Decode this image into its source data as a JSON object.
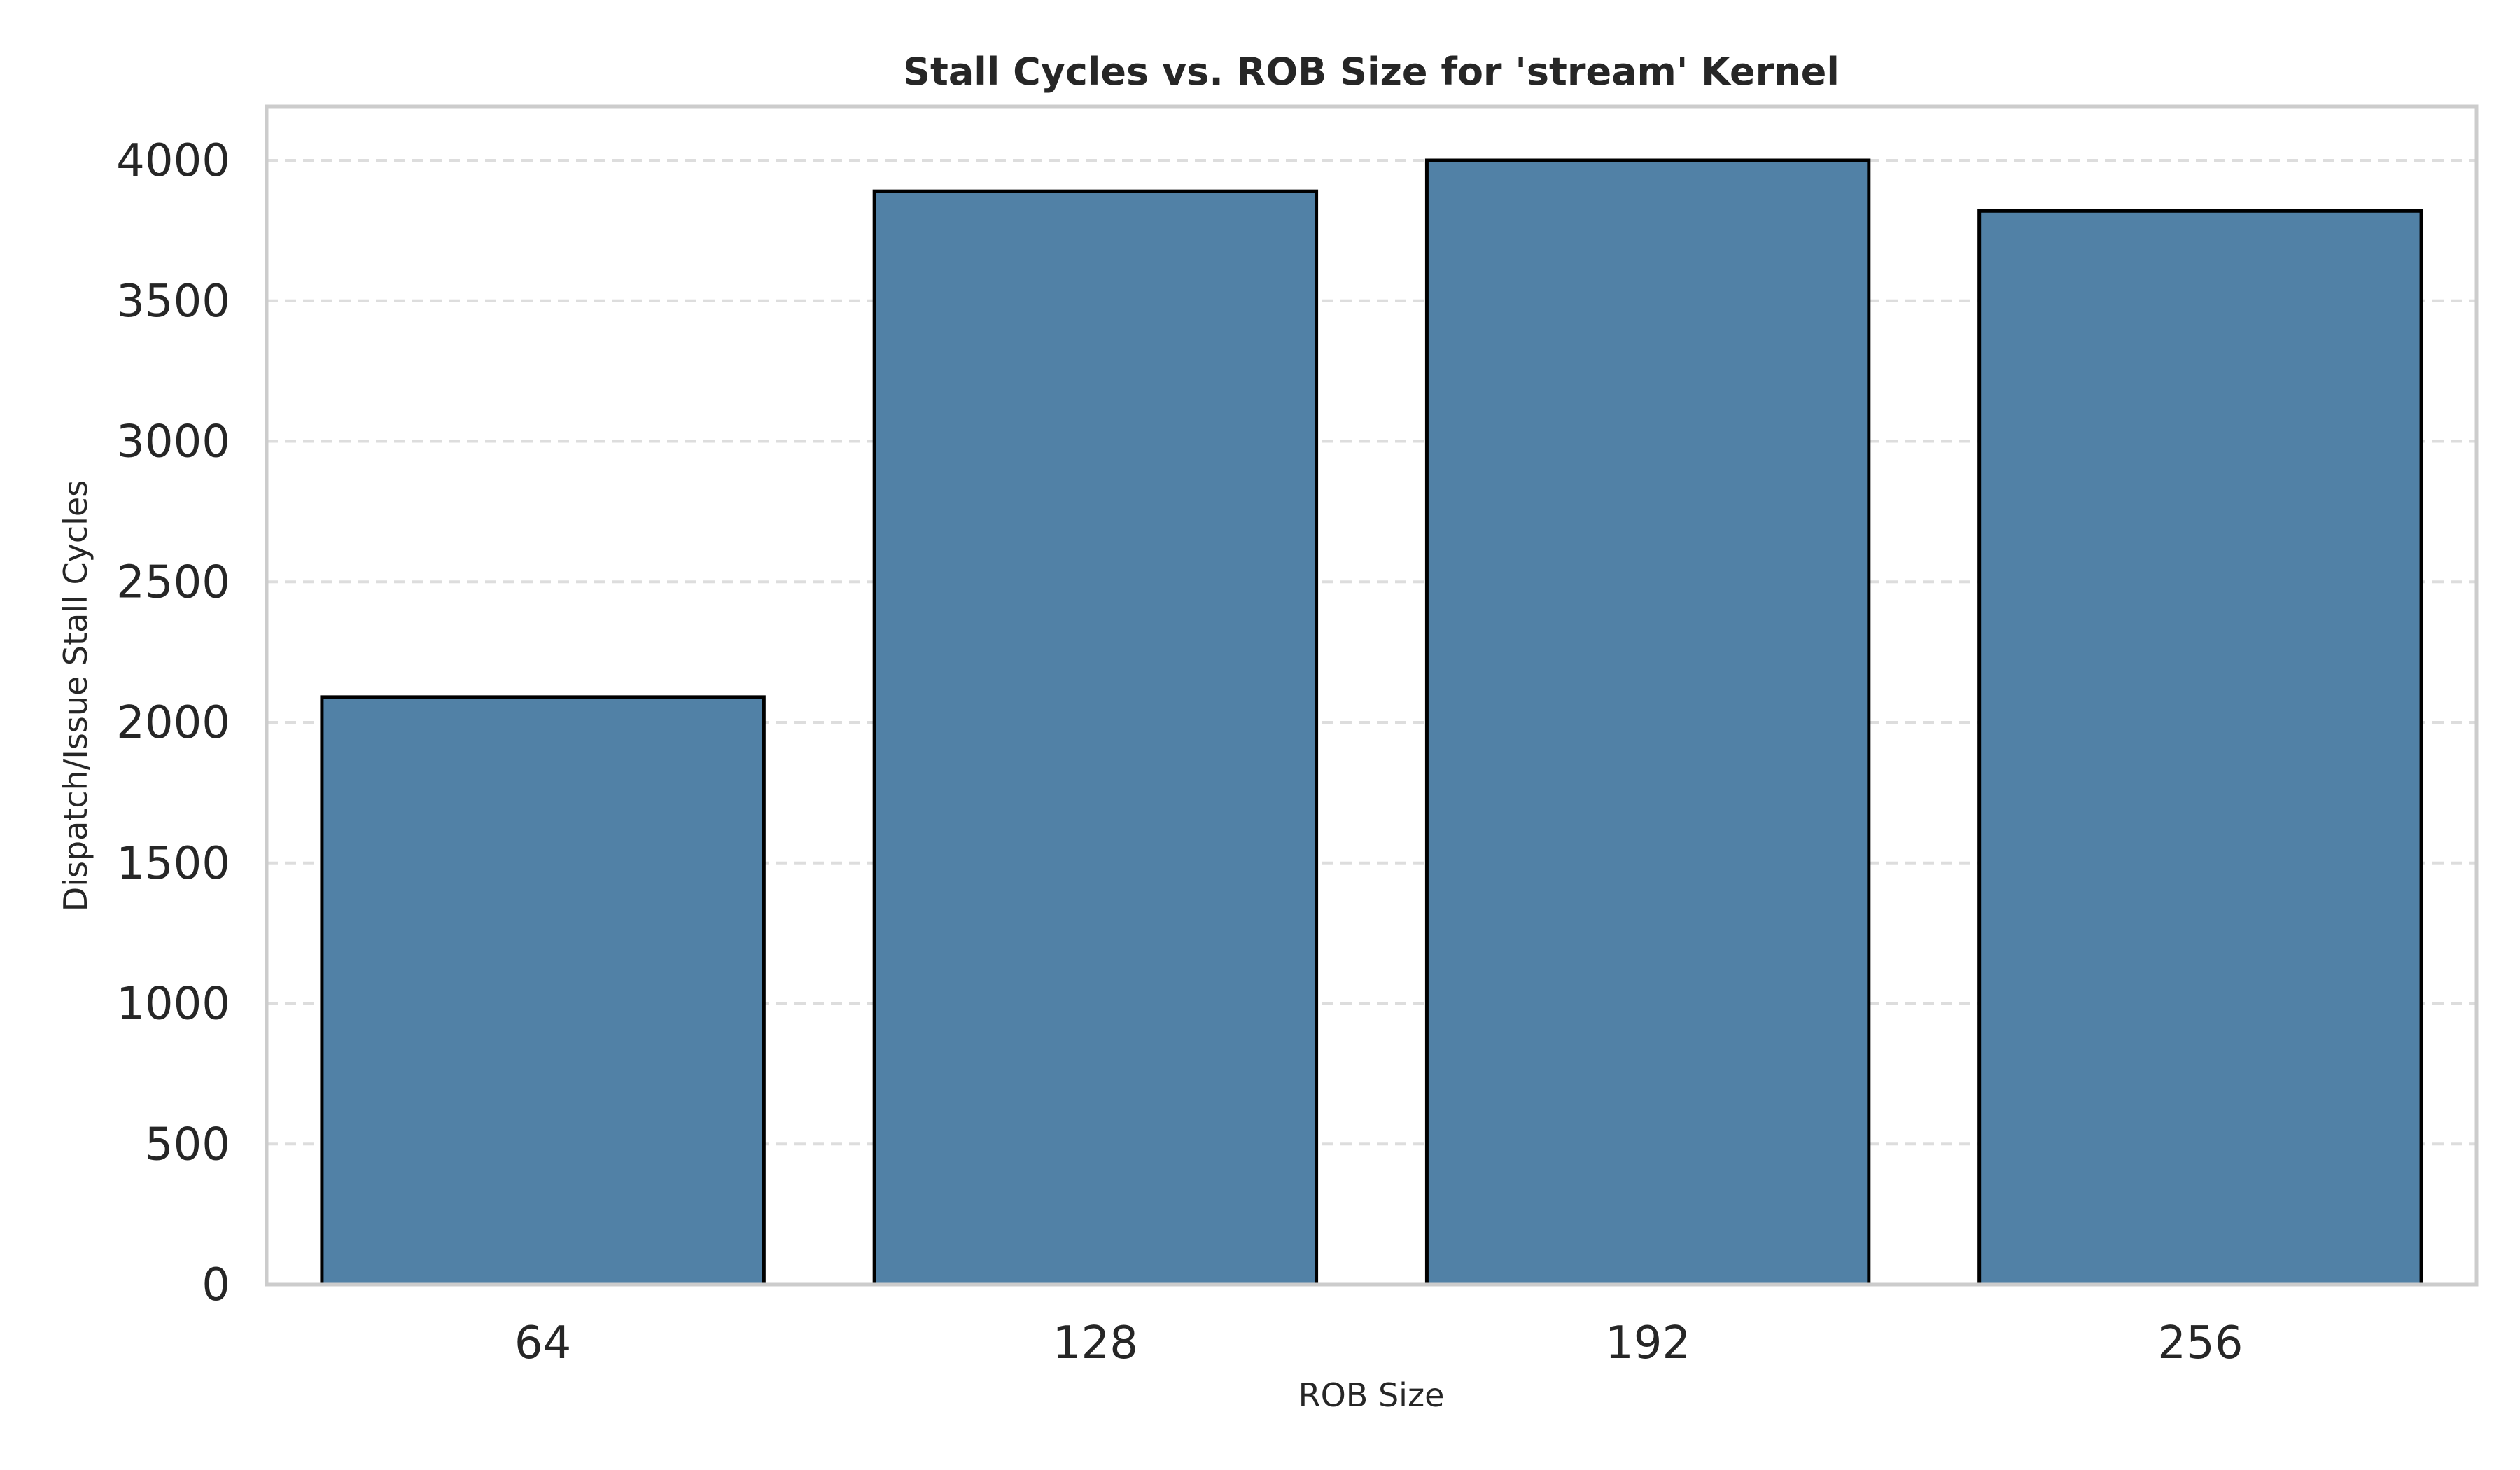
{
  "chart_data": {
    "type": "bar",
    "title": "Stall Cycles vs. ROB Size for 'stream' Kernel",
    "xlabel": "ROB Size",
    "ylabel": "Dispatch/Issue Stall Cycles",
    "categories": [
      "64",
      "128",
      "192",
      "256"
    ],
    "values": [
      2090,
      3890,
      4000,
      3820
    ],
    "ylim": [
      0,
      4200
    ],
    "yticks": [
      0,
      500,
      1000,
      1500,
      2000,
      2500,
      3000,
      3500,
      4000
    ],
    "ytick_labels": [
      "0",
      "500",
      "1000",
      "1500",
      "2000",
      "2500",
      "3000",
      "3500",
      "4000"
    ],
    "grid": "horizontal dashed",
    "legend": "none",
    "bar_color": "#5181a6",
    "bar_edge_color": "#000000"
  }
}
